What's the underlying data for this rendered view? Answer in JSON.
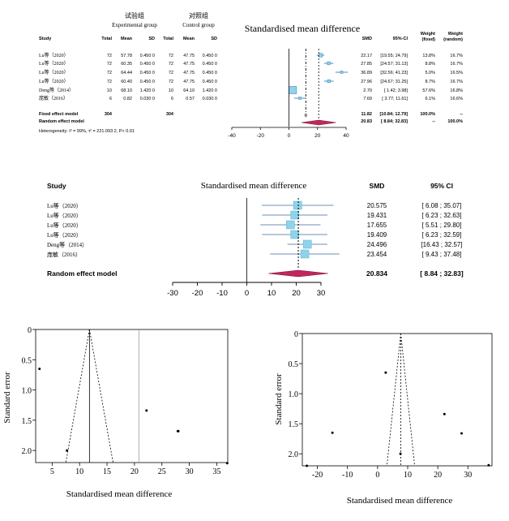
{
  "chart_data": [
    {
      "type": "forest",
      "group_labels": {
        "exp_cn": "试验组",
        "exp_en": "Experimental group",
        "ctl_cn": "对照组",
        "ctl_en": "Control group"
      },
      "title": "Standardised mean difference",
      "columns": [
        "Study",
        "Total",
        "Mean",
        "SD",
        "Total",
        "Mean",
        "SD",
        "SMD",
        "95%-CI",
        "Weight (fixed)",
        "Weight (random)"
      ],
      "rows": [
        {
          "study": "Lu等（2020）",
          "n_e": "72",
          "mean_e": "57.78",
          "sd_e": "0.450 0",
          "n_c": "72",
          "mean_c": "47.75",
          "sd_c": "0.450 0",
          "smd_text": "22.17",
          "ci_text": "[19.55; 24.79]",
          "wf": "13.8%",
          "wr": "16.7%",
          "smd": 22.17,
          "lo": 19.55,
          "hi": 24.79
        },
        {
          "study": "Lu等（2020）",
          "n_e": "72",
          "mean_e": "60.35",
          "sd_e": "0.450 0",
          "n_c": "72",
          "mean_c": "47.75",
          "sd_c": "0.450 0",
          "smd_text": "27.85",
          "ci_text": "[24.57; 31.13]",
          "wf": "8.8%",
          "wr": "16.7%",
          "smd": 27.85,
          "lo": 24.57,
          "hi": 31.13
        },
        {
          "study": "Lu等（2020）",
          "n_e": "72",
          "mean_e": "64.44",
          "sd_e": "0.450 0",
          "n_c": "72",
          "mean_c": "47.75",
          "sd_c": "0.450 0",
          "smd_text": "36.89",
          "ci_text": "[32.56; 41.23]",
          "wf": "5.0%",
          "wr": "16.5%",
          "smd": 36.89,
          "lo": 32.56,
          "hi": 41.23
        },
        {
          "study": "Lu等（2020）",
          "n_e": "72",
          "mean_e": "60.40",
          "sd_e": "0.450 0",
          "n_c": "72",
          "mean_c": "47.75",
          "sd_c": "0.450 0",
          "smd_text": "27.96",
          "ci_text": "[24.67; 31.25]",
          "wf": "8.7%",
          "wr": "16.7%",
          "smd": 27.96,
          "lo": 24.67,
          "hi": 31.25
        },
        {
          "study": "Deng等（2014）",
          "n_e": "10",
          "mean_e": "68.10",
          "sd_e": "1.420 0",
          "n_c": "10",
          "mean_c": "64.10",
          "sd_c": "1.420 0",
          "smd_text": "2.70",
          "ci_text": "[ 1.42;  3.98]",
          "wf": "57.6%",
          "wr": "16.8%",
          "smd": 2.7,
          "lo": 1.42,
          "hi": 3.98
        },
        {
          "study": "庞敏（2016）",
          "n_e": "6",
          "mean_e": "0.82",
          "sd_e": "0.030 0",
          "n_c": "6",
          "mean_c": "0.57",
          "sd_c": "0.030 0",
          "smd_text": "7.69",
          "ci_text": "[ 3.77; 11.61]",
          "wf": "6.1%",
          "wr": "16.6%",
          "smd": 7.69,
          "lo": 3.77,
          "hi": 11.61
        }
      ],
      "fixed": {
        "label": "Fixed effect model",
        "n_e": "304",
        "n_c": "304",
        "smd_text": "11.82",
        "ci_text": "[10.84; 12.79]",
        "wf": "100.0%",
        "wr": "--",
        "smd": 11.82,
        "lo": 10.84,
        "hi": 12.79
      },
      "random": {
        "label": "Random effect  model",
        "smd_text": "20.83",
        "ci_text": "[ 8.84; 32.83]",
        "wf": "--",
        "wr": "100.0%",
        "smd": 20.83,
        "lo": 8.84,
        "hi": 32.83
      },
      "heterogeneity": "Heterogeneity: I² = 99%, τ² = 221.093 2, P< 0.01",
      "xlim": [
        -40,
        40
      ],
      "xticks": [
        -40,
        -20,
        0,
        20,
        40
      ]
    },
    {
      "type": "forest",
      "title": "Standardised mean difference",
      "columns": [
        "Study",
        "SMD",
        "95% CI"
      ],
      "rows": [
        {
          "study": "Lu等（2020）",
          "smd_text": "20.575",
          "ci_text": "[ 6.08 ; 35.07]",
          "smd": 20.575,
          "lo": 6.08,
          "hi": 35.07
        },
        {
          "study": "Lu等（2020）",
          "smd_text": "19.431",
          "ci_text": "[ 6.23 ; 32.63]",
          "smd": 19.431,
          "lo": 6.23,
          "hi": 32.63
        },
        {
          "study": "Lu等（2020）",
          "smd_text": "17.655",
          "ci_text": "[ 5.51 ; 29.80]",
          "smd": 17.655,
          "lo": 5.51,
          "hi": 29.8
        },
        {
          "study": "Lu等（2020）",
          "smd_text": "19.409",
          "ci_text": "[ 6.23 ; 32.59]",
          "smd": 19.409,
          "lo": 6.23,
          "hi": 32.59
        },
        {
          "study": "Deng等（2014）",
          "smd_text": "24.496",
          "ci_text": "[16.43 ; 32.57]",
          "smd": 24.496,
          "lo": 16.43,
          "hi": 32.57
        },
        {
          "study": "庞敏（2016）",
          "smd_text": "23.454",
          "ci_text": "[ 9.43 ; 37.48]",
          "smd": 23.454,
          "lo": 9.43,
          "hi": 37.48
        }
      ],
      "summary": {
        "label": "Random effect  model",
        "smd_text": "20.834",
        "ci_text": "[ 8.84 ; 32.83]",
        "smd": 20.834,
        "lo": 8.84,
        "hi": 32.83
      },
      "xlim": [
        -30,
        30
      ],
      "xticks": [
        -30,
        -20,
        -10,
        0,
        10,
        20,
        30
      ]
    },
    {
      "type": "scatter",
      "subtype": "funnel",
      "xlabel": "Standardised mean difference",
      "ylabel": "Standard error",
      "xlim": [
        2,
        37
      ],
      "ylim": [
        2.2,
        0
      ],
      "xticks": [
        5,
        10,
        15,
        20,
        25,
        30,
        35
      ],
      "yticks": [
        0,
        0.5,
        1.0,
        1.5,
        2.0
      ],
      "ytick_labels": [
        "0",
        "0.5",
        "1.0",
        "1.5",
        "2.0"
      ],
      "fixed_estimate": 11.8,
      "random_estimate": 20.8,
      "points": [
        {
          "x": 2.7,
          "y": 0.65
        },
        {
          "x": 7.7,
          "y": 2.0
        },
        {
          "x": 22.2,
          "y": 1.34
        },
        {
          "x": 27.9,
          "y": 1.68
        },
        {
          "x": 28.0,
          "y": 1.68
        },
        {
          "x": 36.9,
          "y": 2.21
        }
      ]
    },
    {
      "type": "scatter",
      "subtype": "funnel",
      "xlabel": "Standardised mean difference",
      "ylabel": "Standard error",
      "xlim": [
        -25,
        38
      ],
      "ylim": [
        2.2,
        0
      ],
      "xticks": [
        -20,
        -10,
        0,
        10,
        20,
        30
      ],
      "yticks": [
        0,
        0.5,
        1.0,
        1.5,
        2.0
      ],
      "ytick_labels": [
        "0",
        "0.5",
        "1.0",
        "1.5",
        "2.0"
      ],
      "estimate": 7.7,
      "points": [
        {
          "x": -23.5,
          "y": 2.2
        },
        {
          "x": -15,
          "y": 1.65
        },
        {
          "x": 2.7,
          "y": 0.65
        },
        {
          "x": 7.6,
          "y": 2.0
        },
        {
          "x": 22.2,
          "y": 1.34
        },
        {
          "x": 27.9,
          "y": 1.66
        },
        {
          "x": 36.9,
          "y": 2.19
        }
      ]
    }
  ]
}
